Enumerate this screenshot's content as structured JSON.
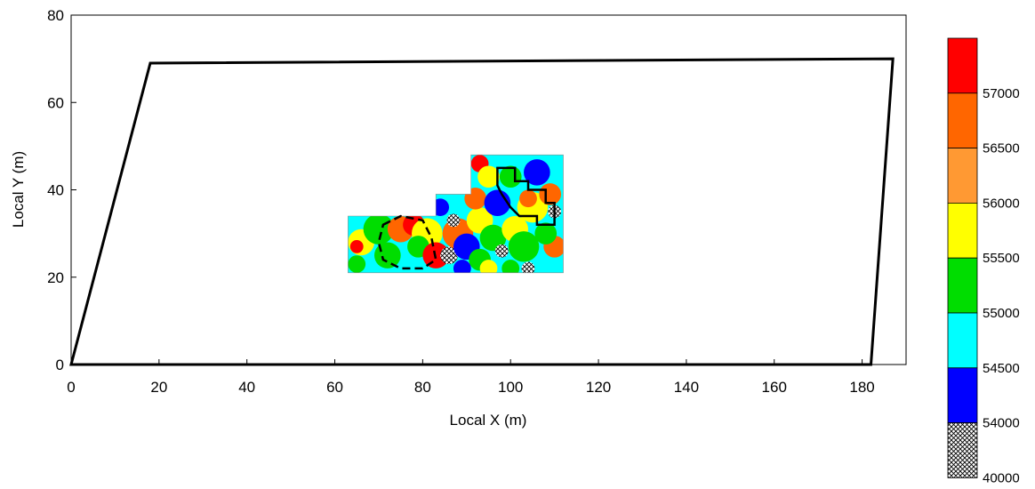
{
  "chart_data": {
    "type": "heatmap",
    "xlabel": "Local X (m)",
    "ylabel": "Local Y (m)",
    "xlim": [
      0,
      190
    ],
    "ylim": [
      0,
      80
    ],
    "xticks": [
      "0",
      "20",
      "40",
      "60",
      "80",
      "100",
      "120",
      "140",
      "160",
      "180"
    ],
    "yticks": [
      "0",
      "20",
      "40",
      "60",
      "80"
    ],
    "grid": false,
    "site_boundary": [
      [
        0,
        0
      ],
      [
        18,
        69
      ],
      [
        187,
        70
      ],
      [
        182,
        0
      ]
    ],
    "survey_area": [
      [
        63,
        21
      ],
      [
        63,
        34
      ],
      [
        83,
        34
      ],
      [
        83,
        39
      ],
      [
        91,
        39
      ],
      [
        91,
        48
      ],
      [
        112,
        48
      ],
      [
        112,
        21
      ]
    ],
    "anomaly_solid": [
      [
        97,
        45
      ],
      [
        101,
        45
      ],
      [
        101,
        42
      ],
      [
        104,
        42
      ],
      [
        104,
        40
      ],
      [
        108,
        40
      ],
      [
        108,
        37
      ],
      [
        110,
        37
      ],
      [
        110,
        32
      ],
      [
        106,
        32
      ],
      [
        106,
        34
      ],
      [
        102,
        34
      ],
      [
        100,
        36
      ],
      [
        98,
        39
      ],
      [
        97,
        41
      ]
    ],
    "anomaly_dashed": [
      [
        71,
        32
      ],
      [
        75,
        34
      ],
      [
        80,
        33
      ],
      [
        82,
        29
      ],
      [
        83,
        24
      ],
      [
        80,
        22
      ],
      [
        75,
        22
      ],
      [
        71,
        24
      ],
      [
        70,
        28
      ]
    ],
    "colorbar": {
      "boundaries": [
        40000,
        54000,
        54500,
        55000,
        55500,
        56000,
        56500,
        57000
      ],
      "labels": [
        "57000",
        "56500",
        "56000",
        "55500",
        "55000",
        "54500",
        "54000",
        "40000"
      ],
      "colors": [
        "#ff0000",
        "#ff6600",
        "#ff9933",
        "#ffff00",
        "#00dd00",
        "#00ffff",
        "#0000ff",
        "crosshatch"
      ]
    },
    "field_blobs": [
      {
        "x": 66,
        "y": 28,
        "r": 3,
        "level": "yellow"
      },
      {
        "x": 65,
        "y": 27,
        "r": 1.5,
        "level": "red"
      },
      {
        "x": 70,
        "y": 31,
        "r": 3.5,
        "level": "green"
      },
      {
        "x": 75,
        "y": 31,
        "r": 3,
        "level": "orange"
      },
      {
        "x": 78,
        "y": 32,
        "r": 2.5,
        "level": "red"
      },
      {
        "x": 81,
        "y": 30,
        "r": 3.5,
        "level": "yellow"
      },
      {
        "x": 72,
        "y": 25,
        "r": 3,
        "level": "green"
      },
      {
        "x": 79,
        "y": 27,
        "r": 2.5,
        "level": "green"
      },
      {
        "x": 83,
        "y": 25,
        "r": 3,
        "level": "red"
      },
      {
        "x": 86,
        "y": 25,
        "r": 2,
        "level": "crosshatch"
      },
      {
        "x": 88,
        "y": 30,
        "r": 3.5,
        "level": "orange"
      },
      {
        "x": 87,
        "y": 33,
        "r": 1.5,
        "level": "crosshatch"
      },
      {
        "x": 84,
        "y": 36,
        "r": 2,
        "level": "blue"
      },
      {
        "x": 90,
        "y": 27,
        "r": 3,
        "level": "blue"
      },
      {
        "x": 93,
        "y": 24,
        "r": 2.5,
        "level": "green"
      },
      {
        "x": 93,
        "y": 33,
        "r": 3,
        "level": "yellow"
      },
      {
        "x": 92,
        "y": 38,
        "r": 2.5,
        "level": "orange"
      },
      {
        "x": 93,
        "y": 46,
        "r": 2,
        "level": "red"
      },
      {
        "x": 95,
        "y": 43,
        "r": 2.5,
        "level": "yellow"
      },
      {
        "x": 97,
        "y": 37,
        "r": 3,
        "level": "blue"
      },
      {
        "x": 96,
        "y": 29,
        "r": 3,
        "level": "green"
      },
      {
        "x": 98,
        "y": 26,
        "r": 1.5,
        "level": "crosshatch"
      },
      {
        "x": 101,
        "y": 31,
        "r": 3,
        "level": "yellow"
      },
      {
        "x": 103,
        "y": 27,
        "r": 3.5,
        "level": "green"
      },
      {
        "x": 105,
        "y": 36,
        "r": 3.5,
        "level": "yellow"
      },
      {
        "x": 104,
        "y": 38,
        "r": 2,
        "level": "orange"
      },
      {
        "x": 106,
        "y": 44,
        "r": 3,
        "level": "blue"
      },
      {
        "x": 100,
        "y": 43,
        "r": 2.5,
        "level": "green"
      },
      {
        "x": 109,
        "y": 39,
        "r": 2.5,
        "level": "orange"
      },
      {
        "x": 110,
        "y": 35,
        "r": 1.5,
        "level": "crosshatch"
      },
      {
        "x": 110,
        "y": 27,
        "r": 2.5,
        "level": "orange"
      },
      {
        "x": 108,
        "y": 30,
        "r": 2.5,
        "level": "green"
      },
      {
        "x": 104,
        "y": 22,
        "r": 1.5,
        "level": "crosshatch"
      },
      {
        "x": 100,
        "y": 22,
        "r": 2,
        "level": "green"
      },
      {
        "x": 95,
        "y": 22,
        "r": 2,
        "level": "yellow"
      },
      {
        "x": 89,
        "y": 22,
        "r": 2,
        "level": "blue"
      },
      {
        "x": 65,
        "y": 23,
        "r": 2,
        "level": "green"
      }
    ]
  }
}
